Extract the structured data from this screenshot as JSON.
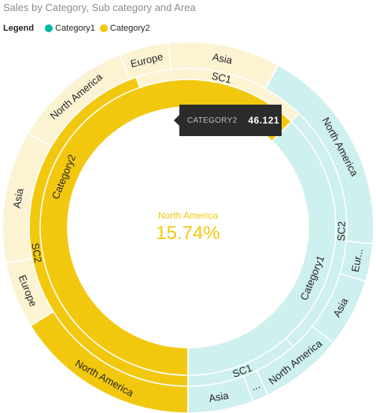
{
  "chart_data": {
    "type": "sunburst",
    "title": "Sales by Category, Sub category and Area",
    "legend": {
      "title": "Legend",
      "position": "top-left",
      "items": [
        {
          "name": "Category1",
          "color": "#01b8aa"
        },
        {
          "name": "Category2",
          "color": "#f2c80f"
        }
      ]
    },
    "rings": [
      {
        "level": "category",
        "segments": [
          {
            "label": "Category2",
            "share": 0.623,
            "color": "#f2c80f"
          },
          {
            "label": "Category1",
            "share": 0.377,
            "color": "#cef0ee"
          }
        ]
      },
      {
        "level": "subcategory",
        "segments": [
          {
            "label": "SC2",
            "share": 0.447,
            "color": "#f2c80f"
          },
          {
            "label": "SC1",
            "share": 0.176,
            "color": "#fcf3d3"
          },
          {
            "label": "SC2",
            "share": 0.262,
            "color": "#cef0ee"
          },
          {
            "label": "SC1",
            "share": 0.115,
            "color": "#cef0ee"
          }
        ]
      },
      {
        "level": "area",
        "segments": [
          {
            "label": "North America",
            "share": 0.161,
            "color": "#f2c80f"
          },
          {
            "label": "Europe",
            "share": 0.058,
            "color": "#fcf3d3"
          },
          {
            "label": "Asia",
            "share": 0.116,
            "color": "#fcf3d3"
          },
          {
            "label": "North America",
            "share": 0.105,
            "color": "#fcf3d3"
          },
          {
            "label": "Europe",
            "share": 0.043,
            "color": "#fcf3d3"
          },
          {
            "label": "Asia",
            "share": 0.098,
            "color": "#fcf3d3"
          },
          {
            "label": "North America",
            "share": 0.183,
            "color": "#cef0ee"
          },
          {
            "label": "Eur...",
            "share": 0.033,
            "color": "#cef0ee"
          },
          {
            "label": "Asia",
            "share": 0.06,
            "color": "#cef0ee"
          },
          {
            "label": "North America",
            "share": 0.072,
            "color": "#cef0ee"
          },
          {
            "label": "...",
            "share": 0.014,
            "color": "#cef0ee"
          },
          {
            "label": "Asia",
            "share": 0.057,
            "color": "#cef0ee"
          }
        ]
      }
    ],
    "center": {
      "label": "North America",
      "value": "15.74%",
      "color": "#f2c80f"
    },
    "tooltip": {
      "key": "CATEGORY2",
      "value": "46.121"
    }
  }
}
